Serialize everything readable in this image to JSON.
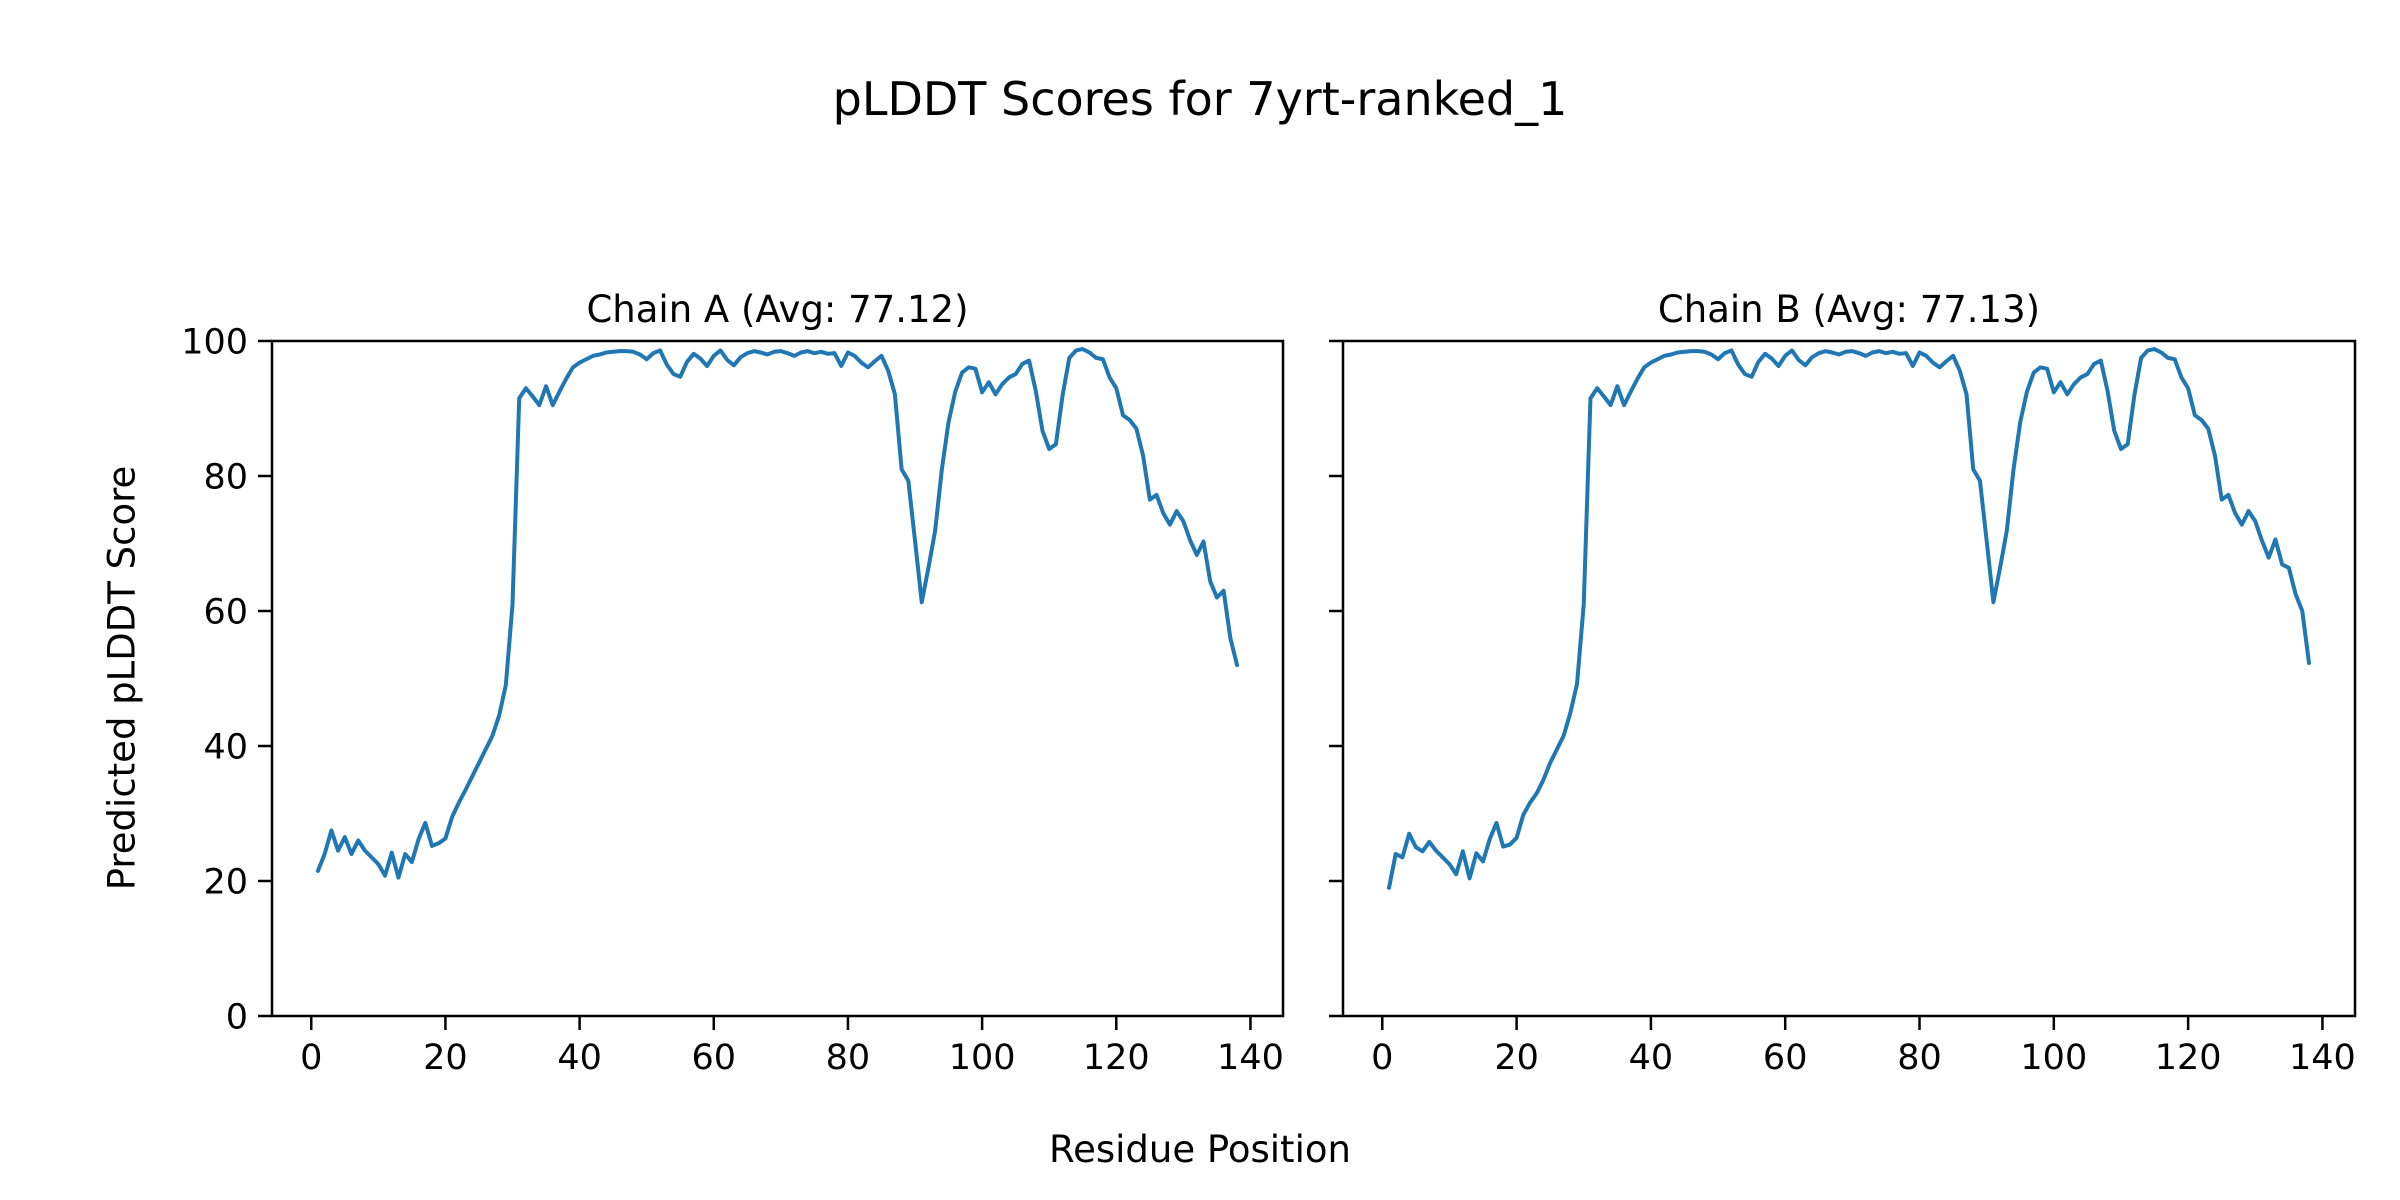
{
  "figure": {
    "title": "pLDDT Scores for 7yrt-ranked_1",
    "xlabel": "Residue Position",
    "ylabel": "Predicted pLDDT Score",
    "background_color": "#ffffff",
    "text_color": "#000000",
    "line_color": "#1f77b4"
  },
  "chart_data": {
    "type": "line",
    "title": "pLDDT Scores for 7yrt-ranked_1",
    "xlabel": "Residue Position",
    "ylabel": "Predicted pLDDT Score",
    "grid": false,
    "legend": "none",
    "line_color": "#1f77b4",
    "xlim": [
      -5.85,
      144.85
    ],
    "ylim": [
      0,
      100
    ],
    "xticks": [
      0,
      20,
      40,
      60,
      80,
      100,
      120,
      140
    ],
    "yticks": [
      0,
      20,
      40,
      60,
      80,
      100
    ],
    "x_start": 1,
    "x_description": "Residue index, 1 to 138",
    "subplots": [
      {
        "id": "chain-a",
        "title": "Chain A (Avg: 77.12)",
        "series_name": "Chain A pLDDT",
        "avg": 77.12,
        "show_y_tick_labels": true,
        "values": [
          21.5,
          24.0,
          27.5,
          24.5,
          26.5,
          24.0,
          26.0,
          24.5,
          23.5,
          22.5,
          20.8,
          24.2,
          20.5,
          24.0,
          22.8,
          26.2,
          28.6,
          25.2,
          25.6,
          26.3,
          29.5,
          31.6,
          33.5,
          35.5,
          37.5,
          39.5,
          41.5,
          44.5,
          49.0,
          61.0,
          91.5,
          93.0,
          91.8,
          90.5,
          93.3,
          90.5,
          92.5,
          94.4,
          96.1,
          96.8,
          97.3,
          97.8,
          98.0,
          98.3,
          98.4,
          98.5,
          98.5,
          98.4,
          98.0,
          97.3,
          98.2,
          98.6,
          96.5,
          95.1,
          94.7,
          96.9,
          98.1,
          97.4,
          96.3,
          97.8,
          98.6,
          97.2,
          96.4,
          97.6,
          98.2,
          98.5,
          98.3,
          98.0,
          98.4,
          98.5,
          98.2,
          97.8,
          98.3,
          98.5,
          98.2,
          98.4,
          98.1,
          98.2,
          96.3,
          98.3,
          97.8,
          96.8,
          96.1,
          97.0,
          97.8,
          95.6,
          92.1,
          81.0,
          79.3,
          70.4,
          61.3,
          66.4,
          71.9,
          81.0,
          88.0,
          92.5,
          95.3,
          96.1,
          95.9,
          92.4,
          93.9,
          92.1,
          93.6,
          94.6,
          95.1,
          96.6,
          97.1,
          92.6,
          86.7,
          84.0,
          84.7,
          92.0,
          97.5,
          98.6,
          98.8,
          98.3,
          97.5,
          97.3,
          94.6,
          93.0,
          89.0,
          88.3,
          87.0,
          83.0,
          76.5,
          77.2,
          74.5,
          72.8,
          74.8,
          73.3,
          70.5,
          68.3,
          70.3,
          64.4,
          62.0,
          63.0,
          56.0,
          52.0
        ]
      },
      {
        "id": "chain-b",
        "title": "Chain B (Avg: 77.13)",
        "series_name": "Chain B pLDDT",
        "avg": 77.13,
        "show_y_tick_labels": false,
        "values": [
          19.0,
          24.0,
          23.5,
          27.0,
          25.0,
          24.4,
          25.8,
          24.5,
          23.5,
          22.5,
          21.0,
          24.4,
          20.4,
          24.1,
          22.9,
          26.2,
          28.6,
          25.1,
          25.4,
          26.4,
          29.8,
          31.6,
          33.0,
          35.0,
          37.5,
          39.5,
          41.5,
          44.9,
          49.2,
          61.0,
          91.5,
          93.0,
          91.8,
          90.5,
          93.3,
          90.5,
          92.5,
          94.4,
          96.1,
          96.8,
          97.3,
          97.8,
          98.0,
          98.3,
          98.4,
          98.5,
          98.5,
          98.4,
          98.0,
          97.3,
          98.2,
          98.6,
          96.5,
          95.1,
          94.7,
          96.9,
          98.1,
          97.4,
          96.3,
          97.8,
          98.6,
          97.2,
          96.4,
          97.6,
          98.2,
          98.5,
          98.3,
          98.0,
          98.4,
          98.5,
          98.2,
          97.8,
          98.3,
          98.5,
          98.2,
          98.4,
          98.1,
          98.2,
          96.3,
          98.3,
          97.8,
          96.8,
          96.1,
          97.0,
          97.8,
          95.6,
          92.1,
          81.0,
          79.3,
          70.4,
          61.3,
          66.4,
          71.9,
          81.0,
          88.0,
          92.5,
          95.3,
          96.1,
          95.9,
          92.4,
          93.9,
          92.1,
          93.6,
          94.6,
          95.1,
          96.6,
          97.1,
          92.6,
          86.7,
          84.0,
          84.7,
          92.0,
          97.5,
          98.6,
          98.8,
          98.3,
          97.5,
          97.3,
          94.6,
          93.0,
          89.0,
          88.3,
          87.0,
          83.0,
          76.5,
          77.2,
          74.5,
          72.8,
          74.8,
          73.3,
          70.4,
          67.9,
          70.6,
          66.9,
          66.4,
          62.5,
          60.0,
          52.3
        ]
      }
    ]
  }
}
